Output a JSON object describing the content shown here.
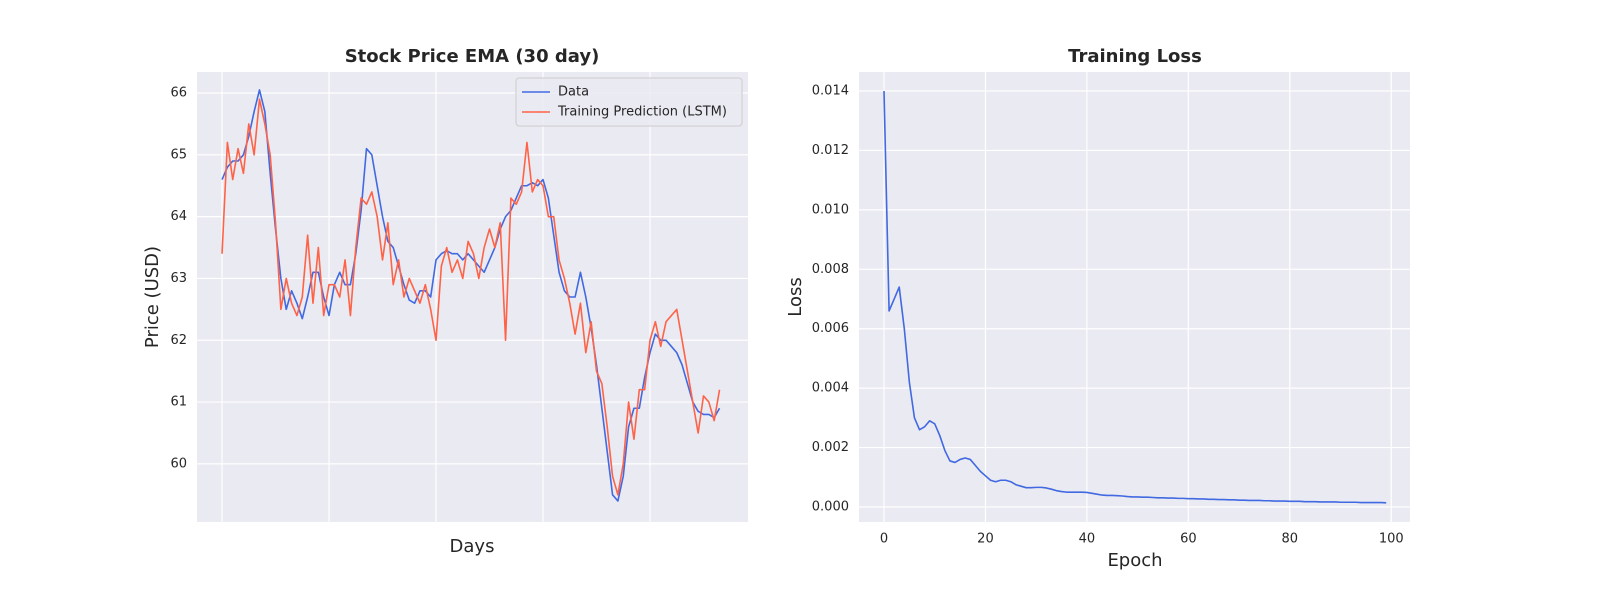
{
  "chart_data": [
    {
      "type": "line",
      "title": "Stock Price EMA (30 day)",
      "x_label": "Days",
      "y_label": "Price (USD)",
      "x": [
        0,
        5,
        10,
        15,
        20,
        25,
        30,
        35,
        40,
        45,
        50,
        55,
        60,
        65,
        70,
        75,
        80,
        85,
        90,
        95,
        100,
        105,
        110,
        115,
        120,
        125,
        130,
        135,
        140,
        145,
        150,
        155,
        160,
        165,
        170,
        175,
        180,
        185,
        190,
        195,
        200,
        205,
        210,
        215,
        220,
        225,
        230,
        235,
        240,
        245,
        250,
        255,
        260,
        265,
        270,
        275,
        280,
        285,
        290,
        295,
        300,
        305,
        310,
        315,
        320,
        325,
        330,
        335,
        340,
        345,
        350,
        355,
        360,
        365,
        370,
        375,
        380,
        385,
        390,
        395,
        400,
        405,
        410,
        415,
        420,
        425,
        430,
        435,
        440,
        445,
        450,
        455,
        460,
        465
      ],
      "series": [
        {
          "name": "Data",
          "color": "#4169e1",
          "values": [
            64.6,
            64.8,
            64.9,
            64.9,
            65.0,
            65.3,
            65.7,
            66.05,
            65.7,
            64.7,
            63.8,
            63.0,
            62.5,
            62.8,
            62.6,
            62.35,
            62.7,
            63.1,
            63.1,
            62.7,
            62.4,
            62.9,
            63.1,
            62.9,
            62.9,
            63.4,
            64.1,
            65.1,
            65.0,
            64.5,
            64.0,
            63.6,
            63.5,
            63.2,
            62.9,
            62.65,
            62.6,
            62.8,
            62.8,
            62.7,
            63.3,
            63.4,
            63.45,
            63.4,
            63.4,
            63.3,
            63.4,
            63.3,
            63.2,
            63.1,
            63.3,
            63.5,
            63.8,
            64.0,
            64.1,
            64.3,
            64.5,
            64.5,
            64.55,
            64.5,
            64.6,
            64.3,
            63.7,
            63.1,
            62.8,
            62.7,
            62.7,
            63.1,
            62.7,
            62.2,
            61.6,
            60.9,
            60.2,
            59.5,
            59.4,
            59.8,
            60.6,
            60.9,
            60.9,
            61.4,
            61.8,
            62.1,
            62.0,
            62.0,
            61.9,
            61.8,
            61.6,
            61.3,
            61.0,
            60.85,
            60.8,
            60.8,
            60.75,
            60.9
          ]
        },
        {
          "name": "Training Prediction (LSTM)",
          "color": "#ff6347",
          "values": [
            63.4,
            65.2,
            64.6,
            65.1,
            64.7,
            65.5,
            65.0,
            65.9,
            65.5,
            65.0,
            63.9,
            62.5,
            63.0,
            62.6,
            62.4,
            62.7,
            63.7,
            62.6,
            63.5,
            62.4,
            62.9,
            62.9,
            62.7,
            63.3,
            62.4,
            63.5,
            64.3,
            64.2,
            64.4,
            64.0,
            63.3,
            63.9,
            62.9,
            63.3,
            62.7,
            63.0,
            62.8,
            62.6,
            62.9,
            62.5,
            62.0,
            63.2,
            63.5,
            63.1,
            63.3,
            63.0,
            63.6,
            63.4,
            63.0,
            63.5,
            63.8,
            63.5,
            63.9,
            62.0,
            64.3,
            64.2,
            64.4,
            65.2,
            64.4,
            64.6,
            64.5,
            64.0,
            64.0,
            63.3,
            63.0,
            62.6,
            62.1,
            62.6,
            61.8,
            62.3,
            61.5,
            61.3,
            60.6,
            59.8,
            59.5,
            60.0,
            61.0,
            60.4,
            61.2,
            61.2,
            62.0,
            62.3,
            61.9,
            62.3,
            62.4,
            62.5,
            62.0,
            61.5,
            61.0,
            60.5,
            61.1,
            61.0,
            60.7,
            61.2
          ]
        }
      ],
      "xlim": [
        -23.4,
        491.6
      ],
      "ylim": [
        59.06,
        66.34
      ],
      "xticks": [
        0,
        100,
        200,
        300,
        400
      ],
      "show_xtick_labels": false,
      "yticks": [
        60,
        61,
        62,
        63,
        64,
        65,
        66
      ],
      "grid": true,
      "legend": "upper right"
    },
    {
      "type": "line",
      "title": "Training Loss",
      "x_label": "Epoch",
      "y_label": "Loss",
      "x": [
        0,
        1,
        2,
        3,
        4,
        5,
        6,
        7,
        8,
        9,
        10,
        11,
        12,
        13,
        14,
        15,
        16,
        17,
        18,
        19,
        20,
        21,
        22,
        23,
        24,
        25,
        26,
        27,
        28,
        29,
        30,
        31,
        32,
        33,
        34,
        35,
        36,
        37,
        38,
        39,
        40,
        41,
        42,
        43,
        44,
        45,
        46,
        47,
        48,
        49,
        50,
        51,
        52,
        53,
        54,
        55,
        56,
        57,
        58,
        59,
        60,
        61,
        62,
        63,
        64,
        65,
        66,
        67,
        68,
        69,
        70,
        71,
        72,
        73,
        74,
        75,
        76,
        77,
        78,
        79,
        80,
        81,
        82,
        83,
        84,
        85,
        86,
        87,
        88,
        89,
        90,
        91,
        92,
        93,
        94,
        95,
        96,
        97,
        98,
        99
      ],
      "series": [
        {
          "color": "#4169e1",
          "values": [
            0.014,
            0.0066,
            0.007,
            0.0074,
            0.006,
            0.0042,
            0.003,
            0.0026,
            0.0027,
            0.0029,
            0.0028,
            0.0024,
            0.0019,
            0.00155,
            0.0015,
            0.0016,
            0.00165,
            0.0016,
            0.0014,
            0.0012,
            0.00105,
            0.0009,
            0.00085,
            0.0009,
            0.0009,
            0.00085,
            0.00075,
            0.0007,
            0.00065,
            0.00065,
            0.00066,
            0.00066,
            0.00064,
            0.0006,
            0.00055,
            0.00052,
            0.0005,
            0.0005,
            0.0005,
            0.0005,
            0.00049,
            0.00046,
            0.00043,
            0.0004,
            0.00039,
            0.00039,
            0.00038,
            0.00037,
            0.00035,
            0.00034,
            0.00034,
            0.00033,
            0.00033,
            0.00032,
            0.00031,
            0.00031,
            0.0003,
            0.0003,
            0.00029,
            0.00029,
            0.00028,
            0.00028,
            0.00027,
            0.00027,
            0.00026,
            0.00026,
            0.00025,
            0.00025,
            0.00024,
            0.00024,
            0.00023,
            0.00023,
            0.00022,
            0.00022,
            0.00022,
            0.00021,
            0.00021,
            0.0002,
            0.0002,
            0.0002,
            0.00019,
            0.00019,
            0.00019,
            0.00018,
            0.00018,
            0.00018,
            0.00017,
            0.00017,
            0.00017,
            0.00017,
            0.00016,
            0.00016,
            0.00016,
            0.00016,
            0.00015,
            0.00015,
            0.00015,
            0.00015,
            0.00015,
            0.00014
          ]
        }
      ],
      "xlim": [
        -4.93,
        103.7
      ],
      "ylim": [
        -0.000505,
        0.01464
      ],
      "xticks": [
        0,
        20,
        40,
        60,
        80,
        100
      ],
      "yticks": [
        {
          "value": 0,
          "label": "0.000"
        },
        {
          "value": 0.002,
          "label": "0.002"
        },
        {
          "value": 0.004,
          "label": "0.004"
        },
        {
          "value": 0.006,
          "label": "0.006"
        },
        {
          "value": 0.008,
          "label": "0.008"
        },
        {
          "value": 0.01,
          "label": "0.010"
        },
        {
          "value": 0.012,
          "label": "0.012"
        },
        {
          "value": 0.014,
          "label": "0.014"
        }
      ],
      "grid": true
    }
  ]
}
